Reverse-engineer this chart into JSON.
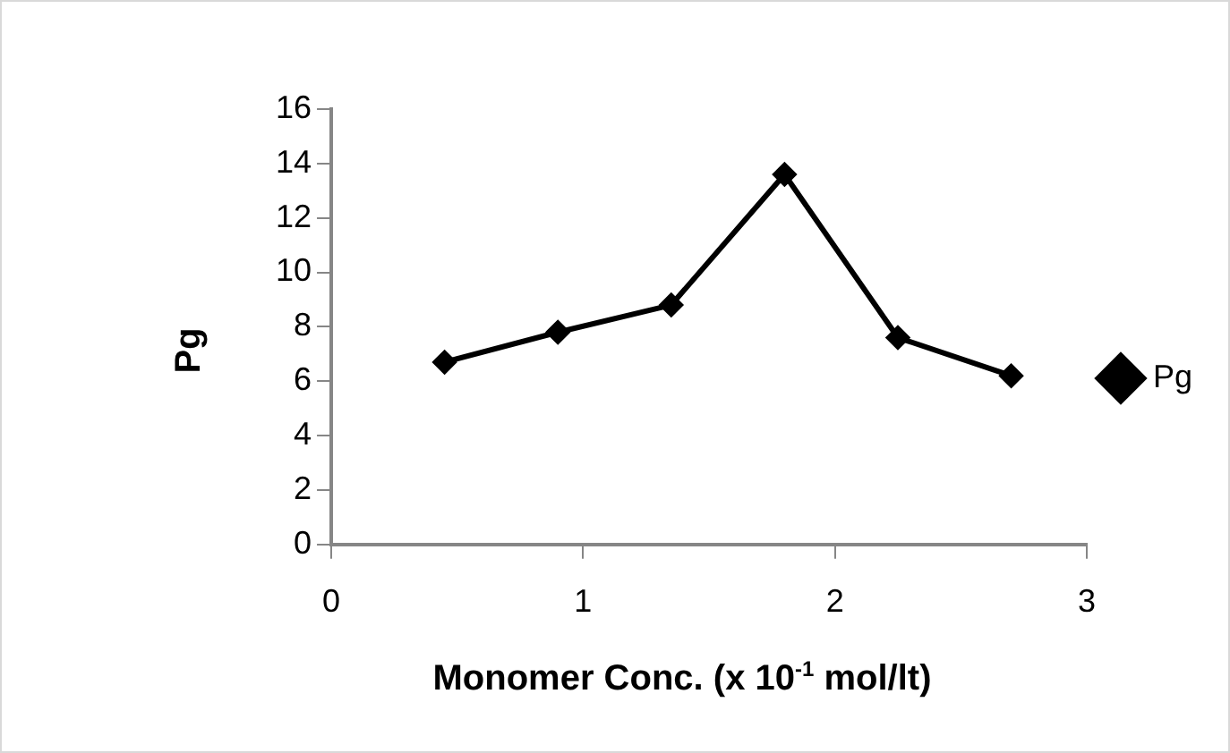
{
  "chart_data": {
    "type": "line",
    "xlabel": "Monomer Conc. (x 10$^{-1}$ mol/lt)",
    "ylabel": "Pg",
    "x": [
      0.45,
      0.9,
      1.35,
      1.8,
      2.25,
      2.7
    ],
    "series": [
      {
        "name": "Pg",
        "color": "#000000",
        "values": [
          6.7,
          7.8,
          8.8,
          13.6,
          7.6,
          6.2
        ]
      }
    ],
    "xlim": [
      0,
      3
    ],
    "xticks": [
      0,
      1,
      2,
      3
    ],
    "ylim": [
      0,
      16
    ],
    "yticks": [
      0,
      2,
      4,
      6,
      8,
      10,
      12,
      14,
      16
    ],
    "grid": false,
    "legend": "right",
    "marker": "diamond",
    "line_style": "solid"
  }
}
